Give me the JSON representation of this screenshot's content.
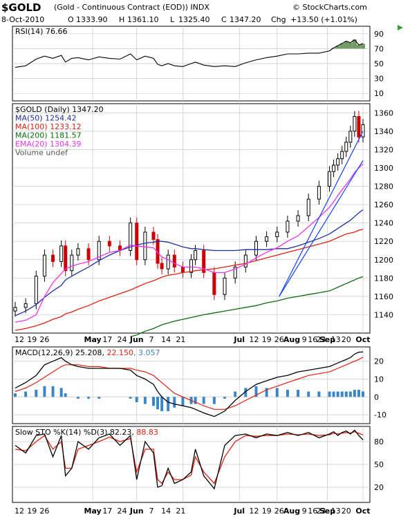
{
  "header": {
    "symbol": "$GOLD",
    "description": "(Gold - Continuous Contract (EOD)) INDX",
    "date": "8-Oct-2010",
    "open_label": "O",
    "open": "1333.90",
    "high_label": "H",
    "high": "1361.10",
    "low_label": "L",
    "low": "1325.40",
    "close_label": "C",
    "close": "1347.20",
    "change_label": "Chg",
    "change": "+13.50 (+1.01%)",
    "watermark": "© StockCharts.com"
  },
  "colors": {
    "up_candle": "#000000",
    "down_candle": "#cc0000",
    "ma50": "#1e2ea0",
    "ma100": "#e02010",
    "ma200": "#0b6b0b",
    "ema20": "#ee33ee",
    "channel": "#1040ff",
    "rsi_fill": "#5a8a4a",
    "macd_hist": "#3a86c8",
    "signal": "#e02010",
    "grid": "#c8c8c8"
  },
  "x_axis": {
    "months": [
      "May",
      "Jun",
      "Jul",
      "Aug",
      "Sep",
      "Oct"
    ],
    "tick_labels": [
      "12",
      "19",
      "26",
      "May",
      "17",
      "24",
      "Jun",
      "7",
      "14",
      "21",
      "Jul",
      "12",
      "19",
      "26",
      "Aug",
      "9",
      "16",
      "23",
      "Sep",
      "13",
      "20",
      "Oct"
    ]
  },
  "chart_data": [
    {
      "type": "line",
      "panel": "rsi",
      "label": "RSI(14) 76.66",
      "indicator": "RSI(14)",
      "last": 76.66,
      "ylim": [
        0,
        100
      ],
      "y_ticks": [
        90,
        70,
        50,
        30,
        10
      ],
      "x": [
        0,
        5,
        10,
        14,
        18,
        22,
        24,
        27,
        30,
        35,
        40,
        45,
        50,
        55,
        58,
        62,
        66,
        68,
        70,
        73,
        76,
        80,
        84,
        86,
        90,
        95,
        100,
        105,
        110,
        115,
        120,
        125,
        130,
        135,
        140,
        145,
        150,
        152,
        154,
        156,
        158,
        160,
        162,
        164,
        166
      ],
      "values": [
        45,
        47,
        56,
        60,
        57,
        61,
        52,
        57,
        58,
        55,
        59,
        57,
        56,
        63,
        55,
        60,
        57,
        49,
        47,
        50,
        47,
        46,
        50,
        52,
        48,
        46,
        47,
        46,
        51,
        55,
        58,
        60,
        63,
        63,
        64,
        64,
        67,
        71,
        74,
        77,
        80,
        78,
        82,
        75,
        76.66
      ]
    },
    {
      "type": "candlestick",
      "panel": "price",
      "label": "$GOLD (Daily) 1347.20",
      "period": "Daily",
      "last": 1347.2,
      "ylim": [
        1120,
        1370
      ],
      "y_ticks": [
        1360,
        1340,
        1320,
        1300,
        1280,
        1260,
        1240,
        1220,
        1200,
        1180,
        1160,
        1140
      ],
      "x": [
        0,
        5,
        10,
        14,
        18,
        22,
        24,
        27,
        30,
        35,
        40,
        45,
        50,
        55,
        58,
        62,
        66,
        68,
        70,
        73,
        76,
        80,
        84,
        86,
        90,
        95,
        100,
        105,
        110,
        115,
        120,
        125,
        130,
        135,
        140,
        145,
        150,
        152,
        154,
        156,
        158,
        160,
        162,
        164,
        166
      ],
      "close": [
        1148,
        1152,
        1182,
        1205,
        1198,
        1215,
        1188,
        1205,
        1212,
        1200,
        1220,
        1215,
        1210,
        1240,
        1200,
        1230,
        1222,
        1196,
        1190,
        1205,
        1192,
        1186,
        1200,
        1210,
        1186,
        1162,
        1180,
        1192,
        1205,
        1220,
        1225,
        1230,
        1242,
        1248,
        1266,
        1280,
        1296,
        1303,
        1310,
        1318,
        1328,
        1340,
        1356,
        1333.7,
        1347.2
      ],
      "series": [
        {
          "name": "MA(50)",
          "last": 1254.42,
          "values": [
            1139,
            1144,
            1151,
            1159,
            1166,
            1172,
            1178,
            1182,
            1186,
            1192,
            1199,
            1205,
            1210,
            1214,
            1216,
            1218,
            1219,
            1220,
            1220,
            1219,
            1217,
            1214,
            1212,
            1212,
            1211,
            1210,
            1210,
            1210,
            1211,
            1211,
            1211,
            1212,
            1212,
            1215,
            1219,
            1223,
            1228,
            1231,
            1234,
            1237,
            1240,
            1243,
            1247,
            1251,
            1254.42
          ]
        },
        {
          "name": "MA(100)",
          "last": 1233.12,
          "values": [
            1123,
            1125,
            1128,
            1131,
            1135,
            1138,
            1141,
            1143,
            1146,
            1150,
            1155,
            1159,
            1163,
            1167,
            1170,
            1174,
            1177,
            1179,
            1181,
            1183,
            1184,
            1186,
            1187,
            1188,
            1189,
            1190,
            1192,
            1194,
            1196,
            1199,
            1202,
            1205,
            1208,
            1211,
            1214,
            1217,
            1220,
            1222,
            1224,
            1226,
            1228,
            1229,
            1230,
            1232,
            1233.12
          ]
        },
        {
          "name": "MA(200)",
          "last": 1181.57,
          "values": [
            null,
            null,
            null,
            null,
            null,
            null,
            null,
            null,
            null,
            null,
            null,
            null,
            null,
            1116,
            1118,
            1122,
            1125,
            1127,
            1129,
            1131,
            1133,
            1135,
            1137,
            1138,
            1140,
            1142,
            1144,
            1146,
            1148,
            1150,
            1153,
            1155,
            1158,
            1160,
            1162,
            1164,
            1166,
            1168,
            1170,
            1172,
            1174,
            1176,
            1178,
            1180,
            1181.57
          ]
        },
        {
          "name": "EMA(20)",
          "last": 1304.39,
          "values": [
            1132,
            1134,
            1140,
            1160,
            1175,
            1185,
            1190,
            1193,
            1195,
            1198,
            1203,
            1208,
            1210,
            1216,
            1215,
            1214,
            1213,
            1208,
            1203,
            1200,
            1196,
            1192,
            1192,
            1192,
            1190,
            1186,
            1186,
            1190,
            1195,
            1202,
            1208,
            1213,
            1220,
            1226,
            1236,
            1246,
            1257,
            1263,
            1270,
            1276,
            1282,
            1288,
            1295,
            1300,
            1304.39
          ]
        }
      ],
      "legend": [
        "$GOLD (Daily) 1347.20",
        "MA(50) 1254.42",
        "MA(100) 1233.12",
        "MA(200) 1181.57",
        "EMA(20) 1304.39",
        "Volume undef"
      ],
      "channel_lines": [
        {
          "x": [
            126,
            166
          ],
          "y": [
            1160,
            1340
          ]
        },
        {
          "x": [
            126,
            166
          ],
          "y": [
            1160,
            1308
          ]
        }
      ]
    },
    {
      "type": "line",
      "panel": "macd",
      "label": "MACD(12,26,9) 25.208, 22.150, 3.057",
      "ylim": [
        -15,
        28
      ],
      "y_ticks": [
        20,
        10,
        0,
        -10
      ],
      "x": [
        0,
        5,
        10,
        14,
        18,
        22,
        24,
        27,
        30,
        35,
        40,
        45,
        50,
        55,
        58,
        62,
        66,
        68,
        70,
        73,
        76,
        80,
        84,
        86,
        90,
        95,
        100,
        105,
        110,
        115,
        120,
        125,
        130,
        135,
        140,
        145,
        150,
        152,
        154,
        156,
        158,
        160,
        162,
        164,
        166
      ],
      "series": [
        {
          "name": "MACD",
          "last": 25.208,
          "values": [
            5,
            8,
            12,
            18,
            20,
            22,
            20,
            18,
            17,
            16,
            16,
            16,
            16,
            15,
            12,
            10,
            7,
            3,
            0,
            -3,
            -4,
            -5,
            -6,
            -7,
            -9,
            -11,
            -8,
            -2,
            3,
            7,
            9,
            11,
            12,
            14,
            15,
            16,
            17,
            18,
            19,
            20,
            21,
            22,
            24,
            25,
            25.208
          ]
        },
        {
          "name": "Signal",
          "last": 22.15,
          "values": [
            3,
            5,
            8,
            11,
            14,
            17,
            18,
            18,
            18,
            17,
            17,
            16,
            16,
            16,
            15,
            14,
            12,
            10,
            8,
            5,
            2,
            0,
            -2,
            -3,
            -5,
            -7,
            -7,
            -5,
            -2,
            1,
            4,
            6,
            8,
            10,
            12,
            13,
            14,
            15,
            16,
            17,
            18,
            19,
            20,
            21,
            22.15
          ]
        },
        {
          "name": "Histogram",
          "last": 3.057,
          "values": [
            2,
            3,
            4,
            6,
            6,
            5,
            2,
            0,
            -1,
            -1,
            -1,
            0,
            0,
            -1,
            -3,
            -4,
            -5,
            -7,
            -8,
            -8,
            -6,
            -5,
            -4,
            -4,
            -4,
            -4,
            -1,
            3,
            5,
            6,
            5,
            5,
            4,
            4,
            3,
            3,
            3,
            3,
            3,
            3,
            3,
            3,
            4,
            4,
            3.057
          ]
        }
      ]
    },
    {
      "type": "line",
      "panel": "slow-sto",
      "label": "Slow STO %K(14) %D(3) 82.23, 88.83",
      "ylim": [
        0,
        100
      ],
      "y_ticks": [
        80,
        50,
        20
      ],
      "x": [
        0,
        5,
        10,
        14,
        18,
        22,
        24,
        27,
        30,
        35,
        40,
        45,
        50,
        55,
        58,
        62,
        66,
        68,
        70,
        73,
        76,
        80,
        84,
        86,
        90,
        95,
        100,
        105,
        110,
        115,
        120,
        125,
        130,
        135,
        140,
        145,
        150,
        152,
        154,
        156,
        158,
        160,
        162,
        164,
        166
      ],
      "series": [
        {
          "name": "%K(14)",
          "last": 82.23,
          "values": [
            75,
            65,
            88,
            90,
            60,
            88,
            35,
            45,
            80,
            70,
            85,
            90,
            75,
            88,
            30,
            80,
            65,
            20,
            22,
            45,
            25,
            30,
            40,
            70,
            35,
            18,
            75,
            88,
            90,
            85,
            90,
            88,
            92,
            88,
            92,
            85,
            90,
            93,
            88,
            92,
            94,
            90,
            95,
            88,
            82.23
          ]
        },
        {
          "name": "%D(3)",
          "last": 88.83,
          "values": [
            70,
            68,
            80,
            88,
            70,
            80,
            45,
            45,
            70,
            75,
            80,
            86,
            80,
            84,
            40,
            70,
            70,
            30,
            25,
            40,
            30,
            30,
            36,
            60,
            40,
            25,
            60,
            80,
            88,
            87,
            88,
            88,
            90,
            89,
            90,
            88,
            89,
            91,
            90,
            91,
            92,
            91,
            93,
            91,
            88.83
          ]
        }
      ]
    }
  ]
}
